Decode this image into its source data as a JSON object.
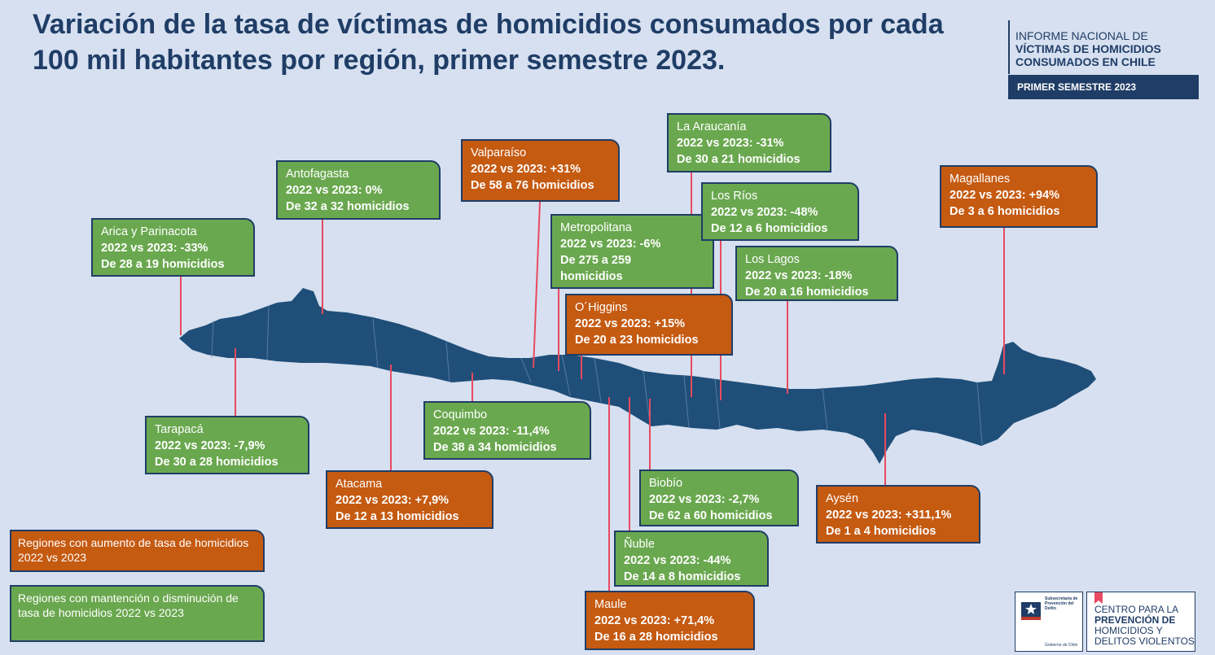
{
  "title": "Variación de la tasa de víctimas de homicidios consumados por cada 100 mil habitantes por región, primer semestre 2023.",
  "report": {
    "line1": "INFORME NACIONAL DE",
    "line2": "VÍCTIMAS DE HOMICIDIOS",
    "line3": "CONSUMADOS EN CHILE",
    "period": "PRIMER SEMESTRE 2023"
  },
  "colors": {
    "increase": "#c55a11",
    "decrease": "#6aa84f",
    "map": "#1f4e79",
    "text": "#1f3d66",
    "connector": "#e84a5f"
  },
  "regions": {
    "arica": {
      "name": "Arica y Parinacota",
      "change": "2022 vs 2023: -33%",
      "count": "De 28 a 19 homicidios"
    },
    "tarapaca": {
      "name": "Tarapacá",
      "change": "2022 vs 2023: -7,9%",
      "count": "De 30 a 28 homicidios"
    },
    "antofagasta": {
      "name": "Antofagasta",
      "change": "2022 vs 2023: 0%",
      "count": "De 32 a 32 homicidios"
    },
    "atacama": {
      "name": "Atacama",
      "change": "2022 vs 2023: +7,9%",
      "count": "De 12 a 13 homicidios"
    },
    "coquimbo": {
      "name": "Coquimbo",
      "change": "2022 vs 2023: -11,4%",
      "count": "De 38 a 34 homicidios"
    },
    "valparaiso": {
      "name": "Valparaíso",
      "change": "2022 vs 2023: +31%",
      "count": "De 58 a 76 homicidios"
    },
    "metropolitana": {
      "name": "Metropolitana",
      "change": "2022 vs 2023: -6%",
      "count": "De 275 a 259 homicidios"
    },
    "ohiggins": {
      "name": "O´Higgins",
      "change": "2022 vs 2023: +15%",
      "count": "De 20 a 23 homicidios"
    },
    "maule": {
      "name": "Maule",
      "change": "2022 vs 2023: +71,4%",
      "count": "De 16 a 28 homicidios"
    },
    "nuble": {
      "name": "Ñuble",
      "change": "2022 vs 2023: -44%",
      "count": "De 14 a 8 homicidios"
    },
    "biobio": {
      "name": "Biobío",
      "change": "2022 vs 2023: -2,7%",
      "count": "De 62 a 60 homicidios"
    },
    "araucania": {
      "name": "La Araucanía",
      "change": "2022 vs 2023: -31%",
      "count": "De 30 a 21 homicidios"
    },
    "losrios": {
      "name": "Los Ríos",
      "change": "2022 vs 2023: -48%",
      "count": "De 12 a 6 homicidios"
    },
    "loslagos": {
      "name": "Los Lagos",
      "change": "2022 vs 2023: -18%",
      "count": "De 20 a 16 homicidios"
    },
    "aysen": {
      "name": "Aysén",
      "change": "2022 vs 2023: +311,1%",
      "count": "De 1 a 4 homicidios"
    },
    "magallanes": {
      "name": "Magallanes",
      "change": "2022 vs 2023: +94%",
      "count": "De 3 a 6 homicidios"
    }
  },
  "legend": {
    "increase": "Regiones con aumento de tasa de homicidios 2022 vs 2023",
    "decrease": "Regiones con mantención o disminución de tasa de homicidios 2022 vs 2023"
  },
  "logos": {
    "subsecretaria": "Subsecretaría de Prevención del Delito",
    "gobierno": "Gobierno de Chile",
    "centro_l1": "CENTRO PARA LA",
    "centro_l2": "PREVENCIÓN DE",
    "centro_l3": "HOMICIDIOS Y",
    "centro_l4": "DELITOS VIOLENTOS"
  }
}
